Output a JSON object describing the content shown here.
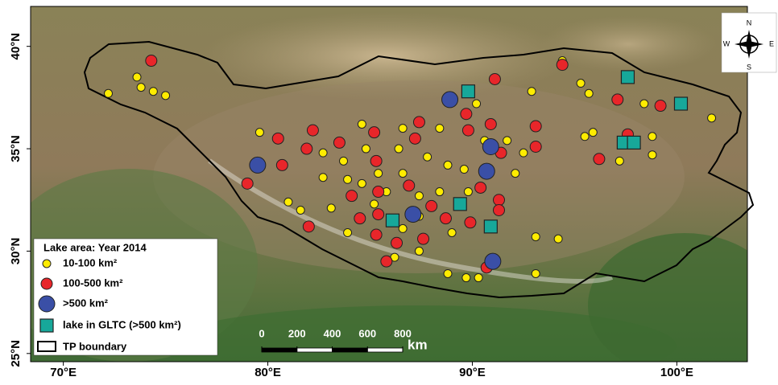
{
  "map": {
    "xlim": [
      68.4,
      103.45
    ],
    "ylim": [
      24.6,
      41.95
    ],
    "xticks": [
      {
        "value": 70,
        "label": "70°E"
      },
      {
        "value": 80,
        "label": "80°E"
      },
      {
        "value": 90,
        "label": "90°E"
      },
      {
        "value": 100,
        "label": "100°E"
      }
    ],
    "yticks": [
      {
        "value": 25,
        "label": "25°N"
      },
      {
        "value": 30,
        "label": "30°N"
      },
      {
        "value": 35,
        "label": "35°N"
      },
      {
        "value": 40,
        "label": "40°N"
      }
    ],
    "legend_title": "Lake area: Year 2014",
    "boundary_label": "TP boundary",
    "compass": [
      "N",
      "E",
      "S",
      "W"
    ],
    "scale_bar": {
      "ticks": [
        0,
        200,
        400,
        600,
        800
      ],
      "unit": "km"
    },
    "series": [
      {
        "name": "10-100  km²",
        "color": "#ffec00",
        "shape": "circle",
        "lon": [
          73.6,
          73.8,
          74.4,
          72.2,
          75.0,
          94.4,
          95.3,
          95.7,
          92.9,
          98.4,
          101.7,
          79.6,
          95.5,
          95.9,
          98.8,
          98.8,
          97.2,
          93.1,
          94.2,
          90.3,
          93.1,
          89.7,
          88.8,
          86.2,
          87.4,
          81.0,
          81.6,
          82.7,
          83.7,
          84.8,
          85.4,
          86.4,
          86.6,
          87.8,
          88.8,
          89.6,
          90.6,
          92.1,
          92.5,
          83.9,
          84.6,
          85.8,
          87.4,
          88.4,
          89.8,
          83.1,
          83.9,
          86.6,
          89.0,
          84.6,
          86.6,
          88.4,
          90.2,
          91.7,
          82.7,
          87.4,
          85.2
        ],
        "lat": [
          38.5,
          38.0,
          37.8,
          37.7,
          37.6,
          39.3,
          38.2,
          37.7,
          37.8,
          37.2,
          36.5,
          35.8,
          35.6,
          35.8,
          35.6,
          34.7,
          34.4,
          30.7,
          30.6,
          28.7,
          28.9,
          28.7,
          28.9,
          29.7,
          30.0,
          32.4,
          32.0,
          34.8,
          34.4,
          35.0,
          33.8,
          35.0,
          33.8,
          34.6,
          34.2,
          34.0,
          35.4,
          33.8,
          34.8,
          33.5,
          33.3,
          32.9,
          32.7,
          32.9,
          32.9,
          32.1,
          30.9,
          31.1,
          30.9,
          36.2,
          36.0,
          36.0,
          37.2,
          35.4,
          33.6,
          31.7,
          32.3
        ]
      },
      {
        "name": "100-500  km²",
        "color": "#e8262a",
        "shape": "circle",
        "lon": [
          74.3,
          94.4,
          91.1,
          89.7,
          97.1,
          99.2,
          97.6,
          79.0,
          80.5,
          82.2,
          85.2,
          87.4,
          89.8,
          90.9,
          93.1,
          81.9,
          83.5,
          85.3,
          87.2,
          80.7,
          84.1,
          85.4,
          86.9,
          90.4,
          91.3,
          91.3,
          88.0,
          82.0,
          84.5,
          85.4,
          88.7,
          89.9,
          86.3,
          85.3,
          87.6,
          85.8,
          90.7,
          93.1,
          96.2,
          91.4
        ],
        "lat": [
          39.3,
          39.1,
          38.4,
          36.7,
          37.4,
          37.1,
          35.7,
          33.3,
          35.5,
          35.9,
          35.8,
          36.3,
          35.9,
          36.2,
          36.1,
          35.0,
          35.3,
          34.4,
          35.5,
          34.2,
          32.7,
          32.9,
          33.2,
          33.1,
          32.5,
          32.0,
          32.2,
          31.2,
          31.6,
          31.8,
          31.6,
          31.4,
          30.4,
          30.8,
          30.6,
          29.5,
          29.2,
          35.1,
          34.5,
          34.8
        ]
      },
      {
        "name": ">500  km²",
        "color": "#3a4fa6",
        "shape": "circle",
        "lon": [
          88.9,
          79.5,
          90.9,
          90.7,
          87.1,
          91.0
        ],
        "lat": [
          37.4,
          34.2,
          35.1,
          33.9,
          31.8,
          29.5
        ]
      },
      {
        "name": "lake in GLTC (>500 km²)",
        "color": "#17a89a",
        "shape": "square",
        "lon": [
          89.8,
          97.6,
          100.2,
          97.4,
          97.9,
          89.4,
          86.1,
          90.9
        ],
        "lat": [
          37.8,
          38.5,
          37.2,
          35.3,
          35.3,
          32.3,
          31.5,
          31.2
        ]
      }
    ]
  }
}
